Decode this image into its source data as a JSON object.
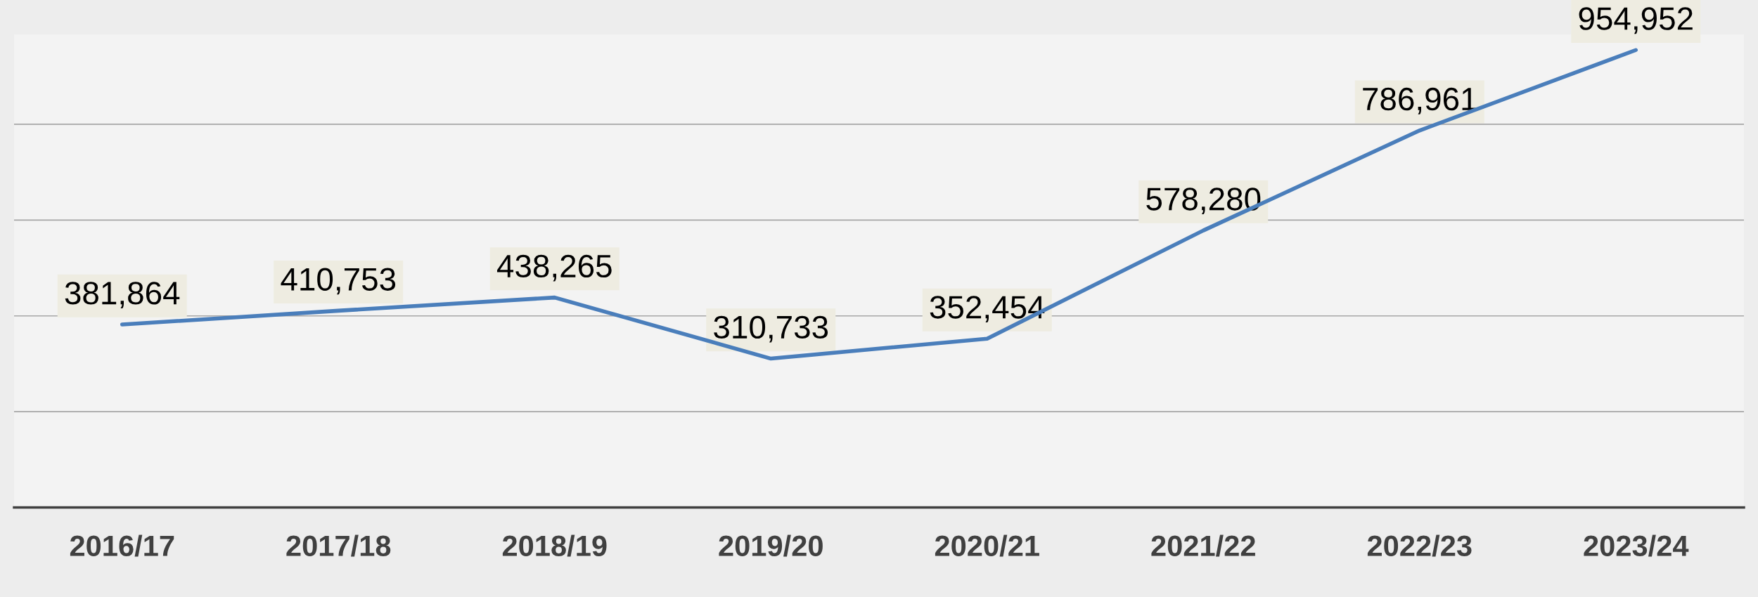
{
  "chart_data": {
    "type": "line",
    "categories": [
      "2016/17",
      "2017/18",
      "2018/19",
      "2019/20",
      "2020/21",
      "2021/22",
      "2022/23",
      "2023/24"
    ],
    "series": [
      {
        "color": "#4a7ebb",
        "values": [
          381864,
          410753,
          438265,
          310733,
          352454,
          578280,
          786961,
          954952
        ],
        "value_labels": [
          "381,864",
          "410,753",
          "438,265",
          "310,733",
          "352,454",
          "578,280",
          "786,961",
          "954,952"
        ]
      }
    ],
    "tick_labels": "x",
    "grid": "y",
    "marker": "none",
    "line_style": "solid",
    "legend": false
  }
}
